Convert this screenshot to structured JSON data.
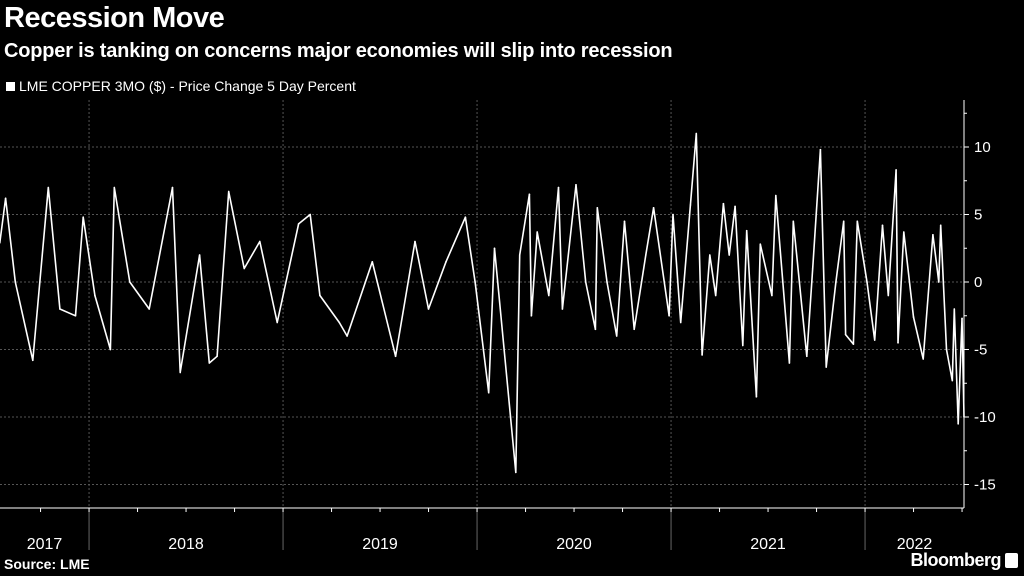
{
  "header": {
    "title": "Recession Move",
    "subtitle": "Copper is tanking on concerns major economies will slip into recession"
  },
  "footer": {
    "source": "Source: LME",
    "brand": "Bloomberg"
  },
  "chart_data": {
    "type": "line",
    "title": "Recession Move",
    "subtitle": "Copper is tanking on concerns major economies will slip into recession",
    "background": "#000000",
    "line_color": "#ffffff",
    "legend_position": "top-left",
    "grid": true,
    "xlabel": "",
    "ylabel": "",
    "y_axis_side": "right",
    "ylim": [
      -16.5,
      13.5
    ],
    "yticks": [
      10,
      5,
      0,
      -5,
      -10,
      -15
    ],
    "ytick_labels": [
      "10",
      "5",
      "0",
      "-5",
      "-10",
      "-15"
    ],
    "xlim": [
      2017.54,
      2022.53
    ],
    "xtick_labels": [
      "2017",
      "2018",
      "2019",
      "2020",
      "2021",
      "2022"
    ],
    "series": [
      {
        "name": "LME COPPER 3MO ($) - Price Change 5 Day Percent",
        "points": [
          [
            2017.54,
            2.9
          ],
          [
            2017.57,
            6.2
          ],
          [
            2017.62,
            0
          ],
          [
            2017.71,
            -5.8
          ],
          [
            2017.79,
            7
          ],
          [
            2017.85,
            -2
          ],
          [
            2017.93,
            -2.5
          ],
          [
            2017.97,
            4.8
          ],
          [
            2018.03,
            -1
          ],
          [
            2018.11,
            -5
          ],
          [
            2018.13,
            7
          ],
          [
            2018.21,
            0
          ],
          [
            2018.31,
            -2
          ],
          [
            2018.43,
            7
          ],
          [
            2018.47,
            -6.7
          ],
          [
            2018.57,
            2
          ],
          [
            2018.62,
            -6
          ],
          [
            2018.66,
            -5.5
          ],
          [
            2018.72,
            6.7
          ],
          [
            2018.8,
            1
          ],
          [
            2018.88,
            3
          ],
          [
            2018.97,
            -3
          ],
          [
            2019.08,
            4.3
          ],
          [
            2019.14,
            5
          ],
          [
            2019.19,
            -1
          ],
          [
            2019.29,
            -3
          ],
          [
            2019.33,
            -4
          ],
          [
            2019.46,
            1.5
          ],
          [
            2019.58,
            -5.5
          ],
          [
            2019.68,
            3
          ],
          [
            2019.75,
            -2
          ],
          [
            2019.84,
            1.5
          ],
          [
            2019.94,
            4.8
          ],
          [
            2019.99,
            0
          ],
          [
            2020.06,
            -8.2
          ],
          [
            2020.09,
            2.5
          ],
          [
            2020.2,
            -14.1
          ],
          [
            2020.22,
            2
          ],
          [
            2020.27,
            6.5
          ],
          [
            2020.28,
            -2.5
          ],
          [
            2020.31,
            3.7
          ],
          [
            2020.37,
            -1
          ],
          [
            2020.42,
            7
          ],
          [
            2020.44,
            -2
          ],
          [
            2020.51,
            7.2
          ],
          [
            2020.56,
            0
          ],
          [
            2020.61,
            -3.5
          ],
          [
            2020.62,
            5.5
          ],
          [
            2020.67,
            0
          ],
          [
            2020.72,
            -4
          ],
          [
            2020.76,
            4.5
          ],
          [
            2020.81,
            -3.5
          ],
          [
            2020.87,
            2
          ],
          [
            2020.91,
            5.5
          ],
          [
            2020.99,
            -2.5
          ],
          [
            2021.01,
            5
          ],
          [
            2021.05,
            -3
          ],
          [
            2021.1,
            5.7
          ],
          [
            2021.13,
            11
          ],
          [
            2021.16,
            -5.4
          ],
          [
            2021.2,
            2
          ],
          [
            2021.23,
            -1
          ],
          [
            2021.27,
            5.8
          ],
          [
            2021.3,
            2
          ],
          [
            2021.33,
            5.6
          ],
          [
            2021.37,
            -4.7
          ],
          [
            2021.39,
            3.8
          ],
          [
            2021.44,
            -8.5
          ],
          [
            2021.46,
            2.8
          ],
          [
            2021.52,
            -1
          ],
          [
            2021.54,
            6.4
          ],
          [
            2021.61,
            -6
          ],
          [
            2021.63,
            4.5
          ],
          [
            2021.7,
            -5.5
          ],
          [
            2021.73,
            1
          ],
          [
            2021.77,
            9.8
          ],
          [
            2021.8,
            -6.3
          ],
          [
            2021.85,
            0
          ],
          [
            2021.89,
            4.5
          ],
          [
            2021.9,
            -3.9
          ],
          [
            2021.94,
            -4.6
          ],
          [
            2021.96,
            4.5
          ],
          [
            2022.01,
            0
          ],
          [
            2022.05,
            -4.3
          ],
          [
            2022.09,
            4.2
          ],
          [
            2022.12,
            -1
          ],
          [
            2022.16,
            8.3
          ],
          [
            2022.17,
            -4.5
          ],
          [
            2022.2,
            3.7
          ],
          [
            2022.25,
            -2.6
          ],
          [
            2022.3,
            -5.7
          ],
          [
            2022.35,
            3.5
          ],
          [
            2022.38,
            0
          ],
          [
            2022.39,
            4.2
          ],
          [
            2022.42,
            -5
          ],
          [
            2022.45,
            -7.3
          ],
          [
            2022.46,
            -2
          ],
          [
            2022.48,
            -10.5
          ],
          [
            2022.5,
            -2.7
          ],
          [
            2022.51,
            -10
          ]
        ]
      }
    ]
  }
}
